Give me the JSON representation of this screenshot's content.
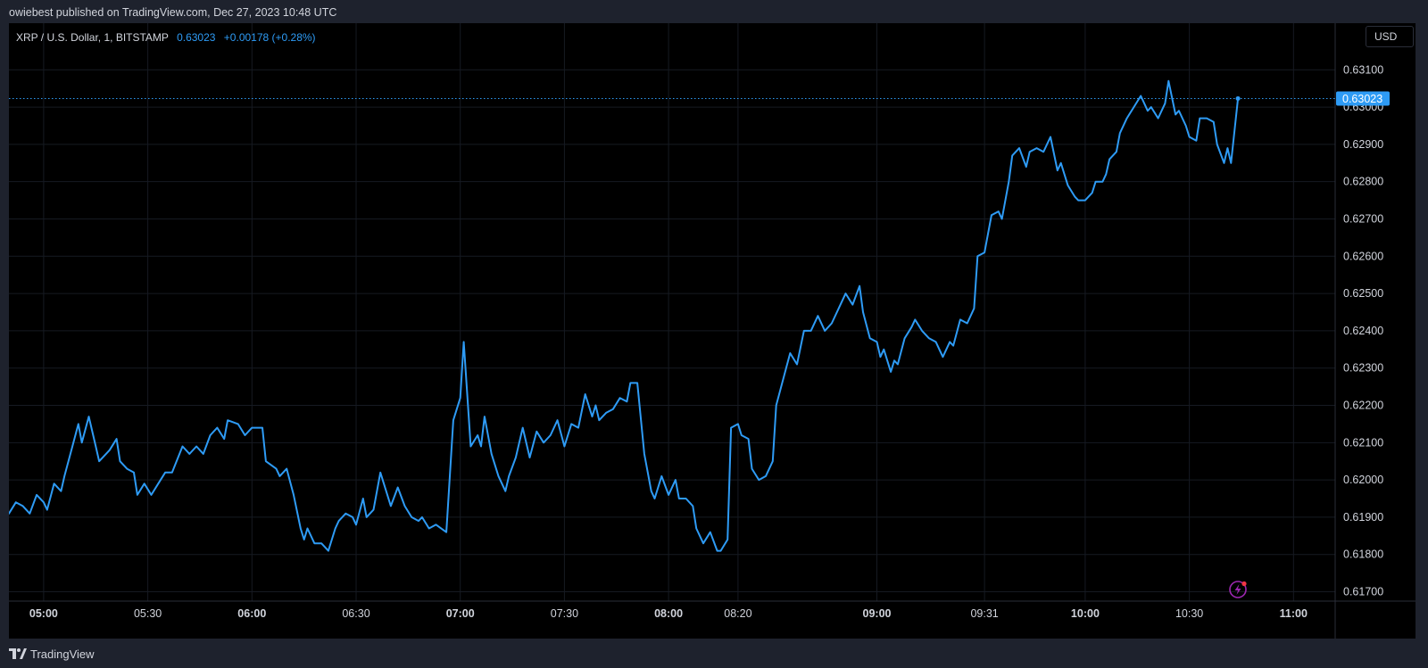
{
  "header": {
    "publisher": "owiebest published on TradingView.com, Dec 27, 2023 10:48 UTC"
  },
  "legend": {
    "symbol": "XRP / U.S. Dollar, 1, BITSTAMP",
    "price": "0.63023",
    "change": "+0.00178 (+0.28%)"
  },
  "toolbar": {
    "currency_label": "USD"
  },
  "footer": {
    "brand": "TradingView"
  },
  "colors": {
    "line": "#2e9bf5",
    "background": "#000000",
    "grid": "#161a22",
    "axis_text": "#d1d4dc",
    "frame": "#1e222d",
    "icon_accent": "#9c27b0"
  },
  "icons": {
    "alert": "lightning-alert-icon",
    "logo": "tradingview-logo-icon"
  },
  "chart_data": {
    "type": "line",
    "title": "",
    "xlabel": "",
    "ylabel": "",
    "last_price": 0.63023,
    "last_price_label": "0.63023",
    "ylim": [
      0.61675,
      0.63225
    ],
    "xlim": [
      "04:50",
      "11:12"
    ],
    "yticks": [
      "0.63100",
      "0.63000",
      "0.62900",
      "0.62800",
      "0.62700",
      "0.62600",
      "0.62500",
      "0.62400",
      "0.62300",
      "0.62200",
      "0.62100",
      "0.62000",
      "0.61900",
      "0.61800",
      "0.61700"
    ],
    "xticks": [
      {
        "t": "05:00",
        "label": "05:00",
        "bold": true
      },
      {
        "t": "05:30",
        "label": "05:30",
        "bold": false
      },
      {
        "t": "06:00",
        "label": "06:00",
        "bold": true
      },
      {
        "t": "06:30",
        "label": "06:30",
        "bold": false
      },
      {
        "t": "07:00",
        "label": "07:00",
        "bold": true
      },
      {
        "t": "07:30",
        "label": "07:30",
        "bold": false
      },
      {
        "t": "08:00",
        "label": "08:00",
        "bold": true
      },
      {
        "t": "08:20",
        "label": "08:20",
        "bold": false
      },
      {
        "t": "09:00",
        "label": "09:00",
        "bold": true
      },
      {
        "t": "09:31",
        "label": "09:31",
        "bold": false
      },
      {
        "t": "10:00",
        "label": "10:00",
        "bold": true
      },
      {
        "t": "10:30",
        "label": "10:30",
        "bold": false
      },
      {
        "t": "11:00",
        "label": "11:00",
        "bold": true
      }
    ],
    "grid": true,
    "series": [
      {
        "points": [
          [
            "04:50",
            0.6191
          ],
          [
            "04:52",
            0.6194
          ],
          [
            "04:54",
            0.6193
          ],
          [
            "04:56",
            0.6191
          ],
          [
            "04:58",
            0.6196
          ],
          [
            "05:00",
            0.6194
          ],
          [
            "05:01",
            0.6192
          ],
          [
            "05:03",
            0.6199
          ],
          [
            "05:05",
            0.6197
          ],
          [
            "05:06",
            0.6201
          ],
          [
            "05:08",
            0.6208
          ],
          [
            "05:10",
            0.6215
          ],
          [
            "05:11",
            0.621
          ],
          [
            "05:13",
            0.6217
          ],
          [
            "05:15",
            0.6209
          ],
          [
            "05:16",
            0.6205
          ],
          [
            "05:19",
            0.6208
          ],
          [
            "05:21",
            0.6211
          ],
          [
            "05:22",
            0.6205
          ],
          [
            "05:24",
            0.6203
          ],
          [
            "05:26",
            0.6202
          ],
          [
            "05:27",
            0.6196
          ],
          [
            "05:29",
            0.6199
          ],
          [
            "05:31",
            0.6196
          ],
          [
            "05:33",
            0.6199
          ],
          [
            "05:35",
            0.6202
          ],
          [
            "05:37",
            0.6202
          ],
          [
            "05:40",
            0.6209
          ],
          [
            "05:42",
            0.6207
          ],
          [
            "05:44",
            0.6209
          ],
          [
            "05:46",
            0.6207
          ],
          [
            "05:48",
            0.6212
          ],
          [
            "05:50",
            0.6214
          ],
          [
            "05:52",
            0.6211
          ],
          [
            "05:53",
            0.6216
          ],
          [
            "05:56",
            0.6215
          ],
          [
            "05:58",
            0.6212
          ],
          [
            "06:00",
            0.6214
          ],
          [
            "06:03",
            0.6214
          ],
          [
            "06:04",
            0.6205
          ],
          [
            "06:07",
            0.6203
          ],
          [
            "06:08",
            0.6201
          ],
          [
            "06:10",
            0.6203
          ],
          [
            "06:12",
            0.6196
          ],
          [
            "06:14",
            0.6187
          ],
          [
            "06:15",
            0.6184
          ],
          [
            "06:16",
            0.6187
          ],
          [
            "06:18",
            0.6183
          ],
          [
            "06:20",
            0.6183
          ],
          [
            "06:22",
            0.6181
          ],
          [
            "06:24",
            0.6187
          ],
          [
            "06:25",
            0.6189
          ],
          [
            "06:27",
            0.6191
          ],
          [
            "06:29",
            0.619
          ],
          [
            "06:30",
            0.6188
          ],
          [
            "06:32",
            0.6195
          ],
          [
            "06:33",
            0.619
          ],
          [
            "06:35",
            0.6192
          ],
          [
            "06:37",
            0.6202
          ],
          [
            "06:40",
            0.6193
          ],
          [
            "06:42",
            0.6198
          ],
          [
            "06:44",
            0.6193
          ],
          [
            "06:46",
            0.619
          ],
          [
            "06:48",
            0.6189
          ],
          [
            "06:49",
            0.619
          ],
          [
            "06:51",
            0.6187
          ],
          [
            "06:53",
            0.6188
          ],
          [
            "06:56",
            0.6186
          ],
          [
            "06:58",
            0.6216
          ],
          [
            "07:00",
            0.6222
          ],
          [
            "07:01",
            0.6237
          ],
          [
            "07:03",
            0.6209
          ],
          [
            "07:05",
            0.6212
          ],
          [
            "07:06",
            0.6209
          ],
          [
            "07:07",
            0.6217
          ],
          [
            "07:09",
            0.6207
          ],
          [
            "07:11",
            0.6201
          ],
          [
            "07:13",
            0.6197
          ],
          [
            "07:14",
            0.6201
          ],
          [
            "07:16",
            0.6206
          ],
          [
            "07:18",
            0.6214
          ],
          [
            "07:20",
            0.6206
          ],
          [
            "07:22",
            0.6213
          ],
          [
            "07:24",
            0.621
          ],
          [
            "07:26",
            0.6212
          ],
          [
            "07:28",
            0.6216
          ],
          [
            "07:30",
            0.6209
          ],
          [
            "07:32",
            0.6215
          ],
          [
            "07:34",
            0.6214
          ],
          [
            "07:36",
            0.6223
          ],
          [
            "07:38",
            0.6217
          ],
          [
            "07:39",
            0.622
          ],
          [
            "07:40",
            0.6216
          ],
          [
            "07:42",
            0.6218
          ],
          [
            "07:44",
            0.6219
          ],
          [
            "07:46",
            0.6222
          ],
          [
            "07:48",
            0.6221
          ],
          [
            "07:49",
            0.6226
          ],
          [
            "07:51",
            0.6226
          ],
          [
            "07:53",
            0.6207
          ],
          [
            "07:55",
            0.6197
          ],
          [
            "07:56",
            0.6195
          ],
          [
            "07:58",
            0.6201
          ],
          [
            "08:00",
            0.6196
          ],
          [
            "08:02",
            0.62
          ],
          [
            "08:03",
            0.6195
          ],
          [
            "08:05",
            0.6195
          ],
          [
            "08:07",
            0.6193
          ],
          [
            "08:08",
            0.6187
          ],
          [
            "08:10",
            0.6183
          ],
          [
            "08:12",
            0.6186
          ],
          [
            "08:14",
            0.6181
          ],
          [
            "08:15",
            0.6181
          ],
          [
            "08:17",
            0.6184
          ],
          [
            "08:18",
            0.6214
          ],
          [
            "08:20",
            0.6215
          ],
          [
            "08:21",
            0.6212
          ],
          [
            "08:23",
            0.6211
          ],
          [
            "08:24",
            0.6203
          ],
          [
            "08:26",
            0.62
          ],
          [
            "08:28",
            0.6201
          ],
          [
            "08:30",
            0.6205
          ],
          [
            "08:31",
            0.622
          ],
          [
            "08:33",
            0.6227
          ],
          [
            "08:35",
            0.6234
          ],
          [
            "08:37",
            0.6231
          ],
          [
            "08:39",
            0.624
          ],
          [
            "08:41",
            0.624
          ],
          [
            "08:43",
            0.6244
          ],
          [
            "08:45",
            0.624
          ],
          [
            "08:47",
            0.6242
          ],
          [
            "08:49",
            0.6246
          ],
          [
            "08:51",
            0.625
          ],
          [
            "08:53",
            0.6247
          ],
          [
            "08:55",
            0.6252
          ],
          [
            "08:56",
            0.6245
          ],
          [
            "08:58",
            0.6238
          ],
          [
            "09:00",
            0.6237
          ],
          [
            "09:01",
            0.6233
          ],
          [
            "09:02",
            0.6235
          ],
          [
            "09:04",
            0.6229
          ],
          [
            "09:05",
            0.6232
          ],
          [
            "09:06",
            0.6231
          ],
          [
            "09:08",
            0.6238
          ],
          [
            "09:10",
            0.6241
          ],
          [
            "09:11",
            0.6243
          ],
          [
            "09:13",
            0.624
          ],
          [
            "09:15",
            0.6238
          ],
          [
            "09:17",
            0.6237
          ],
          [
            "09:19",
            0.6233
          ],
          [
            "09:21",
            0.6237
          ],
          [
            "09:22",
            0.6236
          ],
          [
            "09:24",
            0.6243
          ],
          [
            "09:26",
            0.6242
          ],
          [
            "09:28",
            0.6246
          ],
          [
            "09:29",
            0.626
          ],
          [
            "09:31",
            0.6261
          ],
          [
            "09:33",
            0.6271
          ],
          [
            "09:35",
            0.6272
          ],
          [
            "09:36",
            0.627
          ],
          [
            "09:38",
            0.628
          ],
          [
            "09:39",
            0.6287
          ],
          [
            "09:41",
            0.6289
          ],
          [
            "09:43",
            0.6284
          ],
          [
            "09:44",
            0.6288
          ],
          [
            "09:46",
            0.6289
          ],
          [
            "09:48",
            0.6288
          ],
          [
            "09:50",
            0.6292
          ],
          [
            "09:52",
            0.6283
          ],
          [
            "09:53",
            0.6285
          ],
          [
            "09:55",
            0.6279
          ],
          [
            "09:57",
            0.6276
          ],
          [
            "09:58",
            0.6275
          ],
          [
            "10:00",
            0.6275
          ],
          [
            "10:02",
            0.6277
          ],
          [
            "10:03",
            0.628
          ],
          [
            "10:05",
            0.628
          ],
          [
            "10:06",
            0.6282
          ],
          [
            "10:07",
            0.6286
          ],
          [
            "10:09",
            0.6288
          ],
          [
            "10:10",
            0.6293
          ],
          [
            "10:12",
            0.6297
          ],
          [
            "10:14",
            0.63
          ],
          [
            "10:16",
            0.6303
          ],
          [
            "10:18",
            0.6299
          ],
          [
            "10:19",
            0.63
          ],
          [
            "10:21",
            0.6297
          ],
          [
            "10:23",
            0.6301
          ],
          [
            "10:24",
            0.6307
          ],
          [
            "10:26",
            0.6298
          ],
          [
            "10:27",
            0.6299
          ],
          [
            "10:29",
            0.6295
          ],
          [
            "10:30",
            0.6292
          ],
          [
            "10:32",
            0.6291
          ],
          [
            "10:33",
            0.6297
          ],
          [
            "10:35",
            0.6297
          ],
          [
            "10:37",
            0.6296
          ],
          [
            "10:38",
            0.629
          ],
          [
            "10:40",
            0.6285
          ],
          [
            "10:41",
            0.6289
          ],
          [
            "10:42",
            0.6285
          ],
          [
            "10:44",
            0.63023
          ]
        ]
      }
    ]
  }
}
